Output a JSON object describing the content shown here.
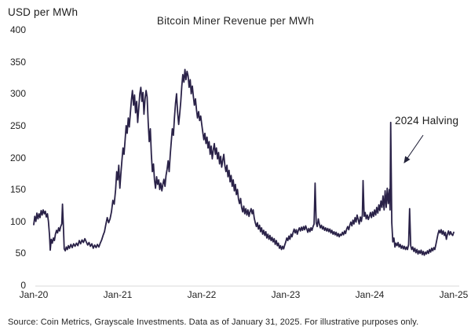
{
  "chart_data": {
    "type": "line",
    "title": "Bitcoin Miner Revenue per MWh",
    "ylabel": "USD per MWh",
    "xlabel": "",
    "ylim": [
      0,
      400
    ],
    "y_ticks": [
      "400",
      "350",
      "300",
      "250",
      "200",
      "150",
      "100",
      "50",
      "0"
    ],
    "x_ticks": [
      "Jan-20",
      "Jan-21",
      "Jan-22",
      "Jan-23",
      "Jan-24",
      "Jan-25"
    ],
    "x_unit": "months since Jan-2020",
    "grid": false,
    "legend_position": "none",
    "line_color": "#2a2248",
    "baseline_color": "#d9d9d9",
    "series_name": "Bitcoin miner revenue per MWh (USD)",
    "annotations": [
      {
        "text": "2024 Halving",
        "target_month": 51,
        "target_value": 255
      }
    ],
    "points": [
      [
        0,
        95
      ],
      [
        0.15,
        108
      ],
      [
        0.3,
        100
      ],
      [
        0.45,
        113
      ],
      [
        0.6,
        104
      ],
      [
        0.75,
        112
      ],
      [
        0.9,
        106
      ],
      [
        1.05,
        117
      ],
      [
        1.2,
        110
      ],
      [
        1.35,
        118
      ],
      [
        1.5,
        112
      ],
      [
        1.65,
        116
      ],
      [
        1.8,
        107
      ],
      [
        1.95,
        112
      ],
      [
        2.1,
        100
      ],
      [
        2.25,
        78
      ],
      [
        2.35,
        55
      ],
      [
        2.5,
        72
      ],
      [
        2.65,
        66
      ],
      [
        2.8,
        74
      ],
      [
        2.95,
        70
      ],
      [
        3.1,
        80
      ],
      [
        3.25,
        86
      ],
      [
        3.4,
        82
      ],
      [
        3.55,
        90
      ],
      [
        3.7,
        85
      ],
      [
        3.85,
        92
      ],
      [
        4,
        96
      ],
      [
        4.1,
        127
      ],
      [
        4.25,
        88
      ],
      [
        4.35,
        57
      ],
      [
        4.5,
        54
      ],
      [
        4.65,
        60
      ],
      [
        4.8,
        56
      ],
      [
        4.95,
        62
      ],
      [
        5.1,
        58
      ],
      [
        5.3,
        64
      ],
      [
        5.5,
        59
      ],
      [
        5.7,
        65
      ],
      [
        5.9,
        61
      ],
      [
        6.1,
        66
      ],
      [
        6.3,
        62
      ],
      [
        6.5,
        70
      ],
      [
        6.7,
        65
      ],
      [
        6.9,
        71
      ],
      [
        7.1,
        67
      ],
      [
        7.3,
        73
      ],
      [
        7.5,
        68
      ],
      [
        7.7,
        63
      ],
      [
        7.9,
        67
      ],
      [
        8.1,
        61
      ],
      [
        8.3,
        65
      ],
      [
        8.5,
        58
      ],
      [
        8.7,
        63
      ],
      [
        8.9,
        59
      ],
      [
        9.1,
        64
      ],
      [
        9.3,
        60
      ],
      [
        9.5,
        66
      ],
      [
        9.7,
        71
      ],
      [
        9.9,
        78
      ],
      [
        10.1,
        84
      ],
      [
        10.3,
        95
      ],
      [
        10.5,
        106
      ],
      [
        10.7,
        98
      ],
      [
        10.9,
        104
      ],
      [
        11.1,
        115
      ],
      [
        11.3,
        133
      ],
      [
        11.5,
        127
      ],
      [
        11.7,
        150
      ],
      [
        11.85,
        178
      ],
      [
        12,
        165
      ],
      [
        12.15,
        188
      ],
      [
        12.3,
        152
      ],
      [
        12.45,
        175
      ],
      [
        12.6,
        195
      ],
      [
        12.75,
        215
      ],
      [
        12.9,
        205
      ],
      [
        13.05,
        228
      ],
      [
        13.2,
        250
      ],
      [
        13.35,
        238
      ],
      [
        13.5,
        262
      ],
      [
        13.65,
        248
      ],
      [
        13.8,
        270
      ],
      [
        13.95,
        290
      ],
      [
        14.1,
        305
      ],
      [
        14.25,
        282
      ],
      [
        14.4,
        298
      ],
      [
        14.55,
        270
      ],
      [
        14.7,
        288
      ],
      [
        14.85,
        255
      ],
      [
        15,
        278
      ],
      [
        15.15,
        300
      ],
      [
        15.3,
        310
      ],
      [
        15.45,
        288
      ],
      [
        15.6,
        302
      ],
      [
        15.75,
        268
      ],
      [
        15.9,
        292
      ],
      [
        16.05,
        305
      ],
      [
        16.2,
        295
      ],
      [
        16.35,
        255
      ],
      [
        16.5,
        225
      ],
      [
        16.65,
        245
      ],
      [
        16.8,
        205
      ],
      [
        16.95,
        178
      ],
      [
        17.1,
        190
      ],
      [
        17.25,
        165
      ],
      [
        17.4,
        152
      ],
      [
        17.55,
        170
      ],
      [
        17.7,
        158
      ],
      [
        17.85,
        165
      ],
      [
        18,
        150
      ],
      [
        18.15,
        160
      ],
      [
        18.3,
        148
      ],
      [
        18.45,
        158
      ],
      [
        18.6,
        166
      ],
      [
        18.75,
        155
      ],
      [
        18.9,
        172
      ],
      [
        19.05,
        182
      ],
      [
        19.2,
        195
      ],
      [
        19.35,
        178
      ],
      [
        19.5,
        205
      ],
      [
        19.65,
        225
      ],
      [
        19.8,
        245
      ],
      [
        19.95,
        235
      ],
      [
        20.1,
        262
      ],
      [
        20.25,
        285
      ],
      [
        20.4,
        300
      ],
      [
        20.55,
        272
      ],
      [
        20.7,
        252
      ],
      [
        20.85,
        268
      ],
      [
        21,
        288
      ],
      [
        21.15,
        312
      ],
      [
        21.3,
        330
      ],
      [
        21.45,
        318
      ],
      [
        21.6,
        338
      ],
      [
        21.75,
        322
      ],
      [
        21.9,
        335
      ],
      [
        22.05,
        328
      ],
      [
        22.2,
        310
      ],
      [
        22.35,
        322
      ],
      [
        22.5,
        300
      ],
      [
        22.65,
        312
      ],
      [
        22.8,
        296
      ],
      [
        22.95,
        282
      ],
      [
        23.1,
        292
      ],
      [
        23.25,
        275
      ],
      [
        23.4,
        262
      ],
      [
        23.55,
        272
      ],
      [
        23.7,
        258
      ],
      [
        23.85,
        265
      ],
      [
        24,
        252
      ],
      [
        24.15,
        240
      ],
      [
        24.3,
        228
      ],
      [
        24.45,
        238
      ],
      [
        24.6,
        222
      ],
      [
        24.75,
        232
      ],
      [
        24.9,
        215
      ],
      [
        25.05,
        225
      ],
      [
        25.2,
        205
      ],
      [
        25.35,
        218
      ],
      [
        25.5,
        198
      ],
      [
        25.65,
        212
      ],
      [
        25.8,
        222
      ],
      [
        25.95,
        205
      ],
      [
        26.1,
        215
      ],
      [
        26.25,
        198
      ],
      [
        26.4,
        208
      ],
      [
        26.55,
        190
      ],
      [
        26.7,
        202
      ],
      [
        26.85,
        185
      ],
      [
        27,
        196
      ],
      [
        27.15,
        205
      ],
      [
        27.3,
        188
      ],
      [
        27.45,
        178
      ],
      [
        27.6,
        188
      ],
      [
        27.75,
        170
      ],
      [
        27.9,
        180
      ],
      [
        28.05,
        162
      ],
      [
        28.2,
        172
      ],
      [
        28.35,
        155
      ],
      [
        28.5,
        165
      ],
      [
        28.65,
        148
      ],
      [
        28.8,
        158
      ],
      [
        28.95,
        142
      ],
      [
        29.1,
        150
      ],
      [
        29.25,
        135
      ],
      [
        29.4,
        128
      ],
      [
        29.55,
        136
      ],
      [
        29.7,
        122
      ],
      [
        29.85,
        115
      ],
      [
        30,
        124
      ],
      [
        30.15,
        112
      ],
      [
        30.3,
        120
      ],
      [
        30.45,
        110
      ],
      [
        30.6,
        118
      ],
      [
        30.75,
        108
      ],
      [
        30.9,
        115
      ],
      [
        31.05,
        120
      ],
      [
        31.2,
        112
      ],
      [
        31.35,
        118
      ],
      [
        31.5,
        105
      ],
      [
        31.65,
        98
      ],
      [
        31.8,
        92
      ],
      [
        31.95,
        98
      ],
      [
        32.1,
        88
      ],
      [
        32.25,
        94
      ],
      [
        32.4,
        84
      ],
      [
        32.55,
        90
      ],
      [
        32.7,
        80
      ],
      [
        32.85,
        86
      ],
      [
        33,
        78
      ],
      [
        33.15,
        84
      ],
      [
        33.3,
        74
      ],
      [
        33.45,
        80
      ],
      [
        33.6,
        72
      ],
      [
        33.75,
        78
      ],
      [
        33.9,
        70
      ],
      [
        34.05,
        75
      ],
      [
        34.2,
        68
      ],
      [
        34.35,
        73
      ],
      [
        34.5,
        64
      ],
      [
        34.65,
        70
      ],
      [
        34.8,
        62
      ],
      [
        34.95,
        66
      ],
      [
        35.1,
        58
      ],
      [
        35.25,
        62
      ],
      [
        35.4,
        56
      ],
      [
        35.55,
        61
      ],
      [
        35.7,
        57
      ],
      [
        35.85,
        63
      ],
      [
        36,
        68
      ],
      [
        36.15,
        74
      ],
      [
        36.3,
        70
      ],
      [
        36.45,
        77
      ],
      [
        36.6,
        72
      ],
      [
        36.75,
        80
      ],
      [
        36.9,
        76
      ],
      [
        37.05,
        83
      ],
      [
        37.2,
        88
      ],
      [
        37.35,
        82
      ],
      [
        37.5,
        87
      ],
      [
        37.65,
        80
      ],
      [
        37.8,
        86
      ],
      [
        37.95,
        90
      ],
      [
        38.1,
        85
      ],
      [
        38.25,
        91
      ],
      [
        38.4,
        86
      ],
      [
        38.55,
        92
      ],
      [
        38.7,
        87
      ],
      [
        38.85,
        93
      ],
      [
        39,
        88
      ],
      [
        39.15,
        83
      ],
      [
        39.3,
        89
      ],
      [
        39.45,
        84
      ],
      [
        39.6,
        90
      ],
      [
        39.75,
        86
      ],
      [
        39.9,
        92
      ],
      [
        40.05,
        96
      ],
      [
        40.2,
        160
      ],
      [
        40.35,
        98
      ],
      [
        40.5,
        92
      ],
      [
        40.65,
        104
      ],
      [
        40.8,
        96
      ],
      [
        40.95,
        90
      ],
      [
        41.1,
        94
      ],
      [
        41.25,
        88
      ],
      [
        41.4,
        92
      ],
      [
        41.55,
        86
      ],
      [
        41.7,
        90
      ],
      [
        41.85,
        85
      ],
      [
        42,
        89
      ],
      [
        42.15,
        84
      ],
      [
        42.3,
        88
      ],
      [
        42.45,
        82
      ],
      [
        42.6,
        86
      ],
      [
        42.75,
        80
      ],
      [
        42.9,
        84
      ],
      [
        43.05,
        79
      ],
      [
        43.2,
        83
      ],
      [
        43.35,
        77
      ],
      [
        43.5,
        81
      ],
      [
        43.65,
        76
      ],
      [
        43.8,
        80
      ],
      [
        43.95,
        78
      ],
      [
        44.1,
        83
      ],
      [
        44.25,
        79
      ],
      [
        44.4,
        85
      ],
      [
        44.55,
        81
      ],
      [
        44.7,
        88
      ],
      [
        44.85,
        92
      ],
      [
        45,
        87
      ],
      [
        45.15,
        94
      ],
      [
        45.3,
        99
      ],
      [
        45.45,
        93
      ],
      [
        45.6,
        102
      ],
      [
        45.75,
        96
      ],
      [
        45.9,
        106
      ],
      [
        46.05,
        99
      ],
      [
        46.2,
        110
      ],
      [
        46.35,
        103
      ],
      [
        46.5,
        96
      ],
      [
        46.65,
        107
      ],
      [
        46.8,
        100
      ],
      [
        46.95,
        110
      ],
      [
        47.05,
        164
      ],
      [
        47.2,
        108
      ],
      [
        47.35,
        114
      ],
      [
        47.5,
        104
      ],
      [
        47.65,
        110
      ],
      [
        47.8,
        103
      ],
      [
        47.95,
        108
      ],
      [
        48.1,
        114
      ],
      [
        48.25,
        106
      ],
      [
        48.4,
        115
      ],
      [
        48.55,
        108
      ],
      [
        48.7,
        118
      ],
      [
        48.85,
        110
      ],
      [
        49,
        122
      ],
      [
        49.15,
        113
      ],
      [
        49.3,
        126
      ],
      [
        49.45,
        117
      ],
      [
        49.6,
        132
      ],
      [
        49.75,
        122
      ],
      [
        49.9,
        140
      ],
      [
        50.05,
        118
      ],
      [
        50.2,
        148
      ],
      [
        50.35,
        122
      ],
      [
        50.5,
        152
      ],
      [
        50.65,
        128
      ],
      [
        50.8,
        150
      ],
      [
        50.9,
        118
      ],
      [
        51,
        255
      ],
      [
        51.15,
        98
      ],
      [
        51.3,
        68
      ],
      [
        51.45,
        74
      ],
      [
        51.6,
        60
      ],
      [
        51.75,
        66
      ],
      [
        51.9,
        62
      ],
      [
        52.05,
        67
      ],
      [
        52.2,
        60
      ],
      [
        52.35,
        64
      ],
      [
        52.5,
        58
      ],
      [
        52.65,
        62
      ],
      [
        52.8,
        57
      ],
      [
        52.95,
        61
      ],
      [
        53.1,
        56
      ],
      [
        53.25,
        60
      ],
      [
        53.4,
        56
      ],
      [
        53.55,
        64
      ],
      [
        53.7,
        120
      ],
      [
        53.85,
        62
      ],
      [
        54,
        56
      ],
      [
        54.15,
        60
      ],
      [
        54.3,
        53
      ],
      [
        54.45,
        58
      ],
      [
        54.6,
        51
      ],
      [
        54.75,
        56
      ],
      [
        54.9,
        49
      ],
      [
        55.05,
        54
      ],
      [
        55.2,
        50
      ],
      [
        55.35,
        55
      ],
      [
        55.5,
        48
      ],
      [
        55.65,
        53
      ],
      [
        55.8,
        47
      ],
      [
        55.95,
        52
      ],
      [
        56.1,
        49
      ],
      [
        56.25,
        54
      ],
      [
        56.4,
        50
      ],
      [
        56.55,
        56
      ],
      [
        56.7,
        52
      ],
      [
        56.85,
        58
      ],
      [
        57,
        54
      ],
      [
        57.15,
        59
      ],
      [
        57.3,
        56
      ],
      [
        57.45,
        64
      ],
      [
        57.6,
        72
      ],
      [
        57.75,
        80
      ],
      [
        57.9,
        86
      ],
      [
        58.05,
        82
      ],
      [
        58.2,
        87
      ],
      [
        58.35,
        80
      ],
      [
        58.5,
        85
      ],
      [
        58.65,
        78
      ],
      [
        58.8,
        83
      ],
      [
        58.95,
        72
      ],
      [
        59.1,
        80
      ],
      [
        59.25,
        85
      ],
      [
        59.4,
        79
      ],
      [
        59.55,
        84
      ],
      [
        59.7,
        80
      ],
      [
        59.85,
        78
      ],
      [
        60,
        83
      ]
    ]
  },
  "footer": {
    "source": "Source: Coin Metrics, Grayscale Investments. Data as of January 31, 2025. For illustrative purposes only."
  }
}
